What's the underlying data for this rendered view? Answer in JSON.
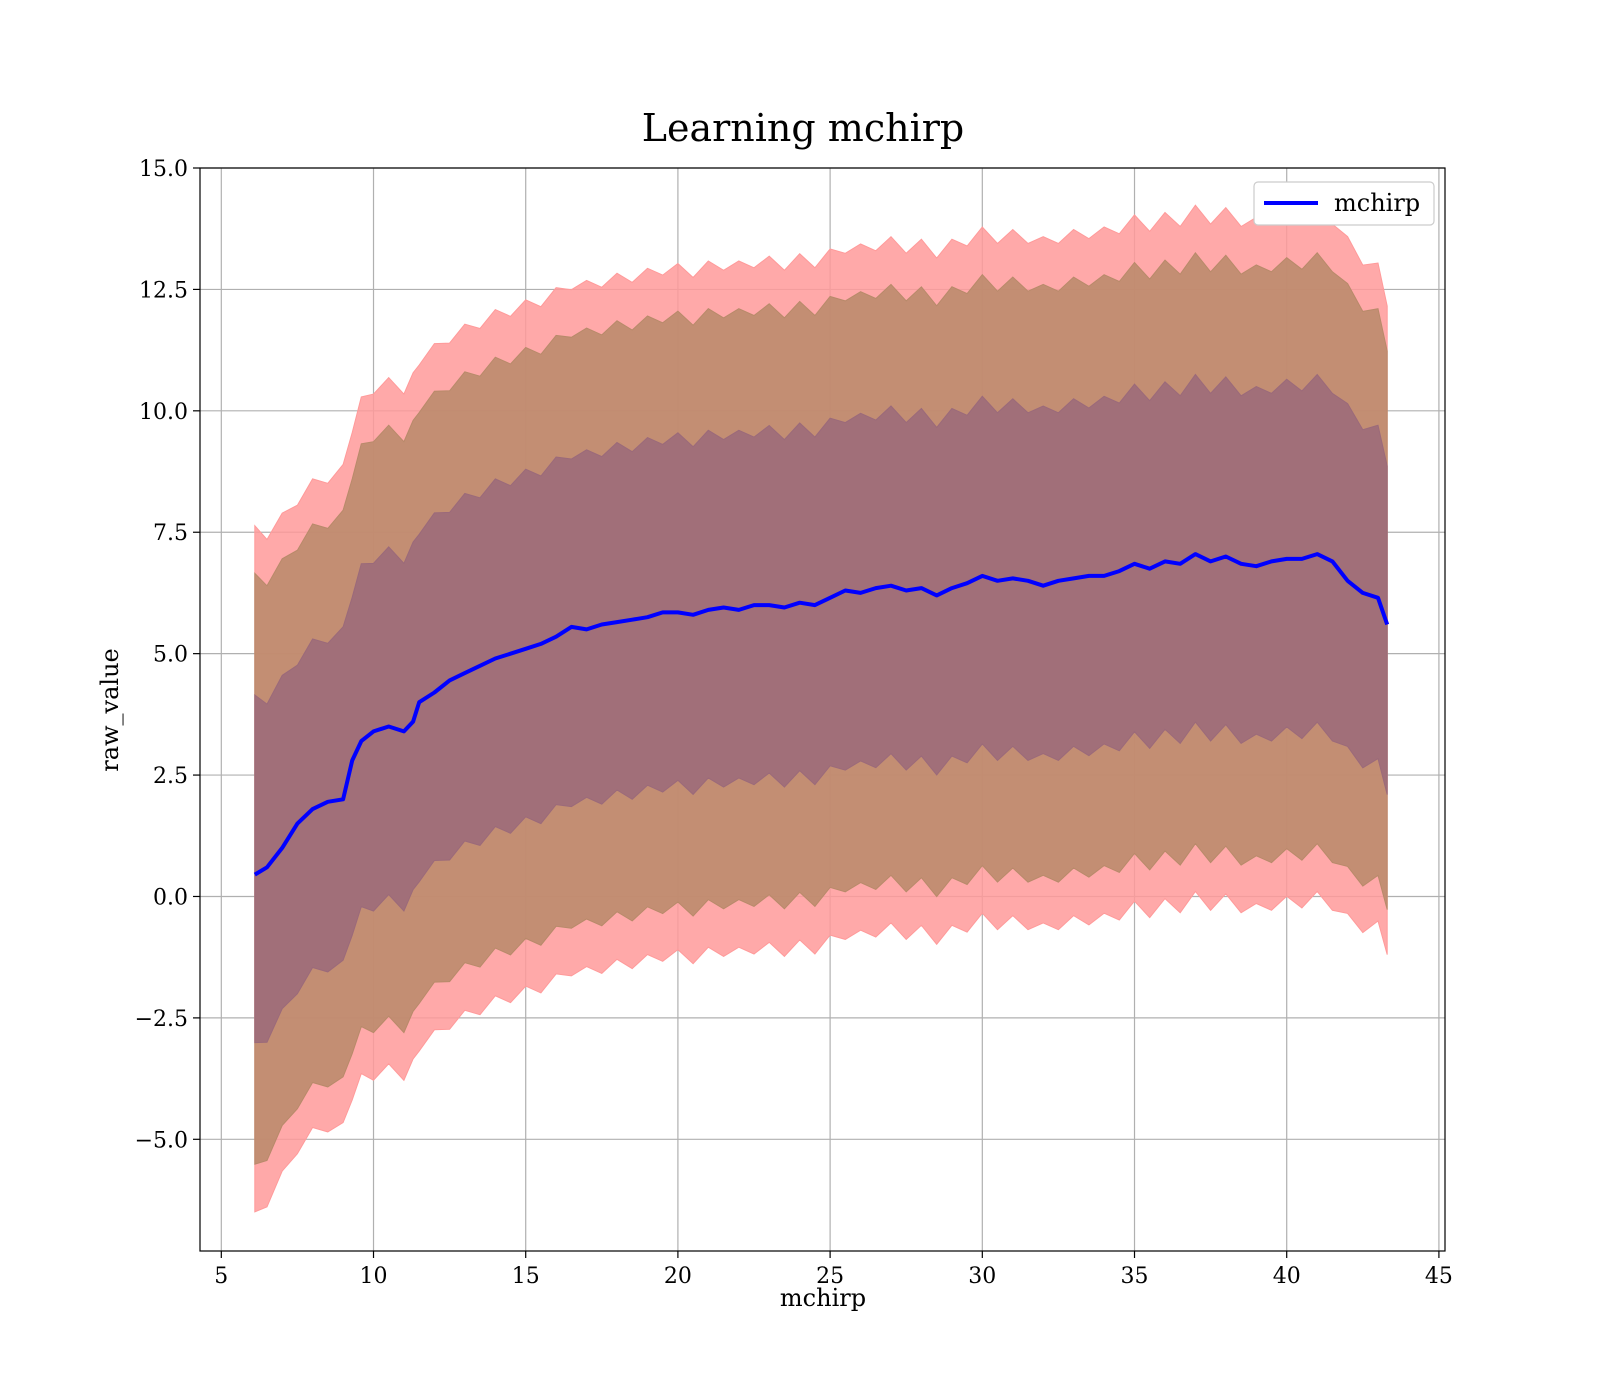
{
  "chart_data": {
    "type": "area",
    "title": "Learning mchirp",
    "xlabel": "mchirp",
    "ylabel": "raw_value",
    "xlim": [
      4.3,
      45.2
    ],
    "ylim": [
      -7.3,
      15.0
    ],
    "grid": true,
    "legend_position": "top-right",
    "x_ticks": [
      5,
      10,
      15,
      20,
      25,
      30,
      35,
      40,
      45
    ],
    "x_tick_labels": [
      "5",
      "10",
      "15",
      "20",
      "25",
      "30",
      "35",
      "40",
      "45"
    ],
    "y_ticks": [
      15.0,
      12.5,
      10.0,
      7.5,
      5.0,
      2.5,
      0.0,
      -2.5,
      -5.0
    ],
    "y_tick_labels": [
      "15.0",
      "12.5",
      "10.0",
      "7.5",
      "5.0",
      "2.5",
      "0.0",
      "−2.5",
      "−5.0"
    ],
    "bands": [
      {
        "color": "#ff9a9a",
        "sigma": 3,
        "lower_extra": 0
      },
      {
        "color": "#b88a6a",
        "sigma": 2,
        "lower_extra": 0
      },
      {
        "color": "#9b6a7a",
        "sigma": 1,
        "lower_extra": 0
      }
    ],
    "series": [
      {
        "name": "mchirp",
        "color": "#0000ff",
        "x": [
          6.1,
          6.5,
          7.0,
          7.5,
          8.0,
          8.5,
          9.0,
          9.3,
          9.6,
          10.0,
          10.5,
          11.0,
          11.3,
          11.5,
          12.0,
          12.5,
          13.0,
          13.5,
          14.0,
          14.5,
          15.0,
          15.5,
          16.0,
          16.5,
          17.0,
          17.5,
          18.0,
          18.5,
          19.0,
          19.5,
          20.0,
          20.5,
          21.0,
          21.5,
          22.0,
          22.5,
          23.0,
          23.5,
          24.0,
          24.5,
          25.0,
          25.5,
          26.0,
          26.5,
          27.0,
          27.5,
          28.0,
          28.5,
          29.0,
          29.5,
          30.0,
          30.5,
          31.0,
          31.5,
          32.0,
          32.5,
          33.0,
          33.5,
          34.0,
          34.5,
          35.0,
          35.5,
          36.0,
          36.5,
          37.0,
          37.5,
          38.0,
          38.5,
          39.0,
          39.5,
          40.0,
          40.5,
          41.0,
          41.5,
          42.0,
          42.5,
          43.0,
          43.3
        ],
        "y": [
          0.45,
          0.6,
          1.0,
          1.5,
          1.8,
          1.95,
          2.0,
          2.8,
          3.2,
          3.4,
          3.5,
          3.4,
          3.6,
          4.0,
          4.2,
          4.45,
          4.6,
          4.75,
          4.9,
          5.0,
          5.1,
          5.2,
          5.35,
          5.55,
          5.5,
          5.6,
          5.65,
          5.7,
          5.75,
          5.85,
          5.85,
          5.8,
          5.9,
          5.95,
          5.9,
          6.0,
          6.0,
          5.95,
          6.05,
          6.0,
          6.15,
          6.3,
          6.25,
          6.35,
          6.4,
          6.3,
          6.35,
          6.2,
          6.35,
          6.45,
          6.6,
          6.5,
          6.55,
          6.5,
          6.4,
          6.5,
          6.55,
          6.6,
          6.6,
          6.7,
          6.85,
          6.75,
          6.9,
          6.85,
          7.05,
          6.9,
          7.0,
          6.85,
          6.8,
          6.9,
          6.95,
          6.95,
          7.05,
          6.9,
          6.5,
          6.25,
          6.15,
          5.6
        ],
        "sigma": [
          3.65,
          3.55,
          3.5,
          3.45,
          3.45,
          3.45,
          3.5,
          3.55,
          3.6,
          3.65,
          3.65,
          3.65,
          3.65,
          3.65,
          3.65,
          3.65,
          3.65,
          3.65,
          3.65,
          3.65,
          3.65,
          3.65,
          3.65,
          3.65,
          3.65,
          3.65,
          3.65,
          3.65,
          3.65,
          3.65,
          3.65,
          3.65,
          3.65,
          3.65,
          3.65,
          3.65,
          3.65,
          3.65,
          3.65,
          3.65,
          3.65,
          3.65,
          3.65,
          3.65,
          3.65,
          3.65,
          3.65,
          3.65,
          3.65,
          3.65,
          3.65,
          3.65,
          3.65,
          3.65,
          3.65,
          3.65,
          3.65,
          3.65,
          3.65,
          3.65,
          3.65,
          3.65,
          3.65,
          3.65,
          3.65,
          3.65,
          3.65,
          3.65,
          3.65,
          3.65,
          3.65,
          3.65,
          3.65,
          3.65,
          3.6,
          3.55,
          3.5,
          3.45
        ]
      }
    ]
  }
}
